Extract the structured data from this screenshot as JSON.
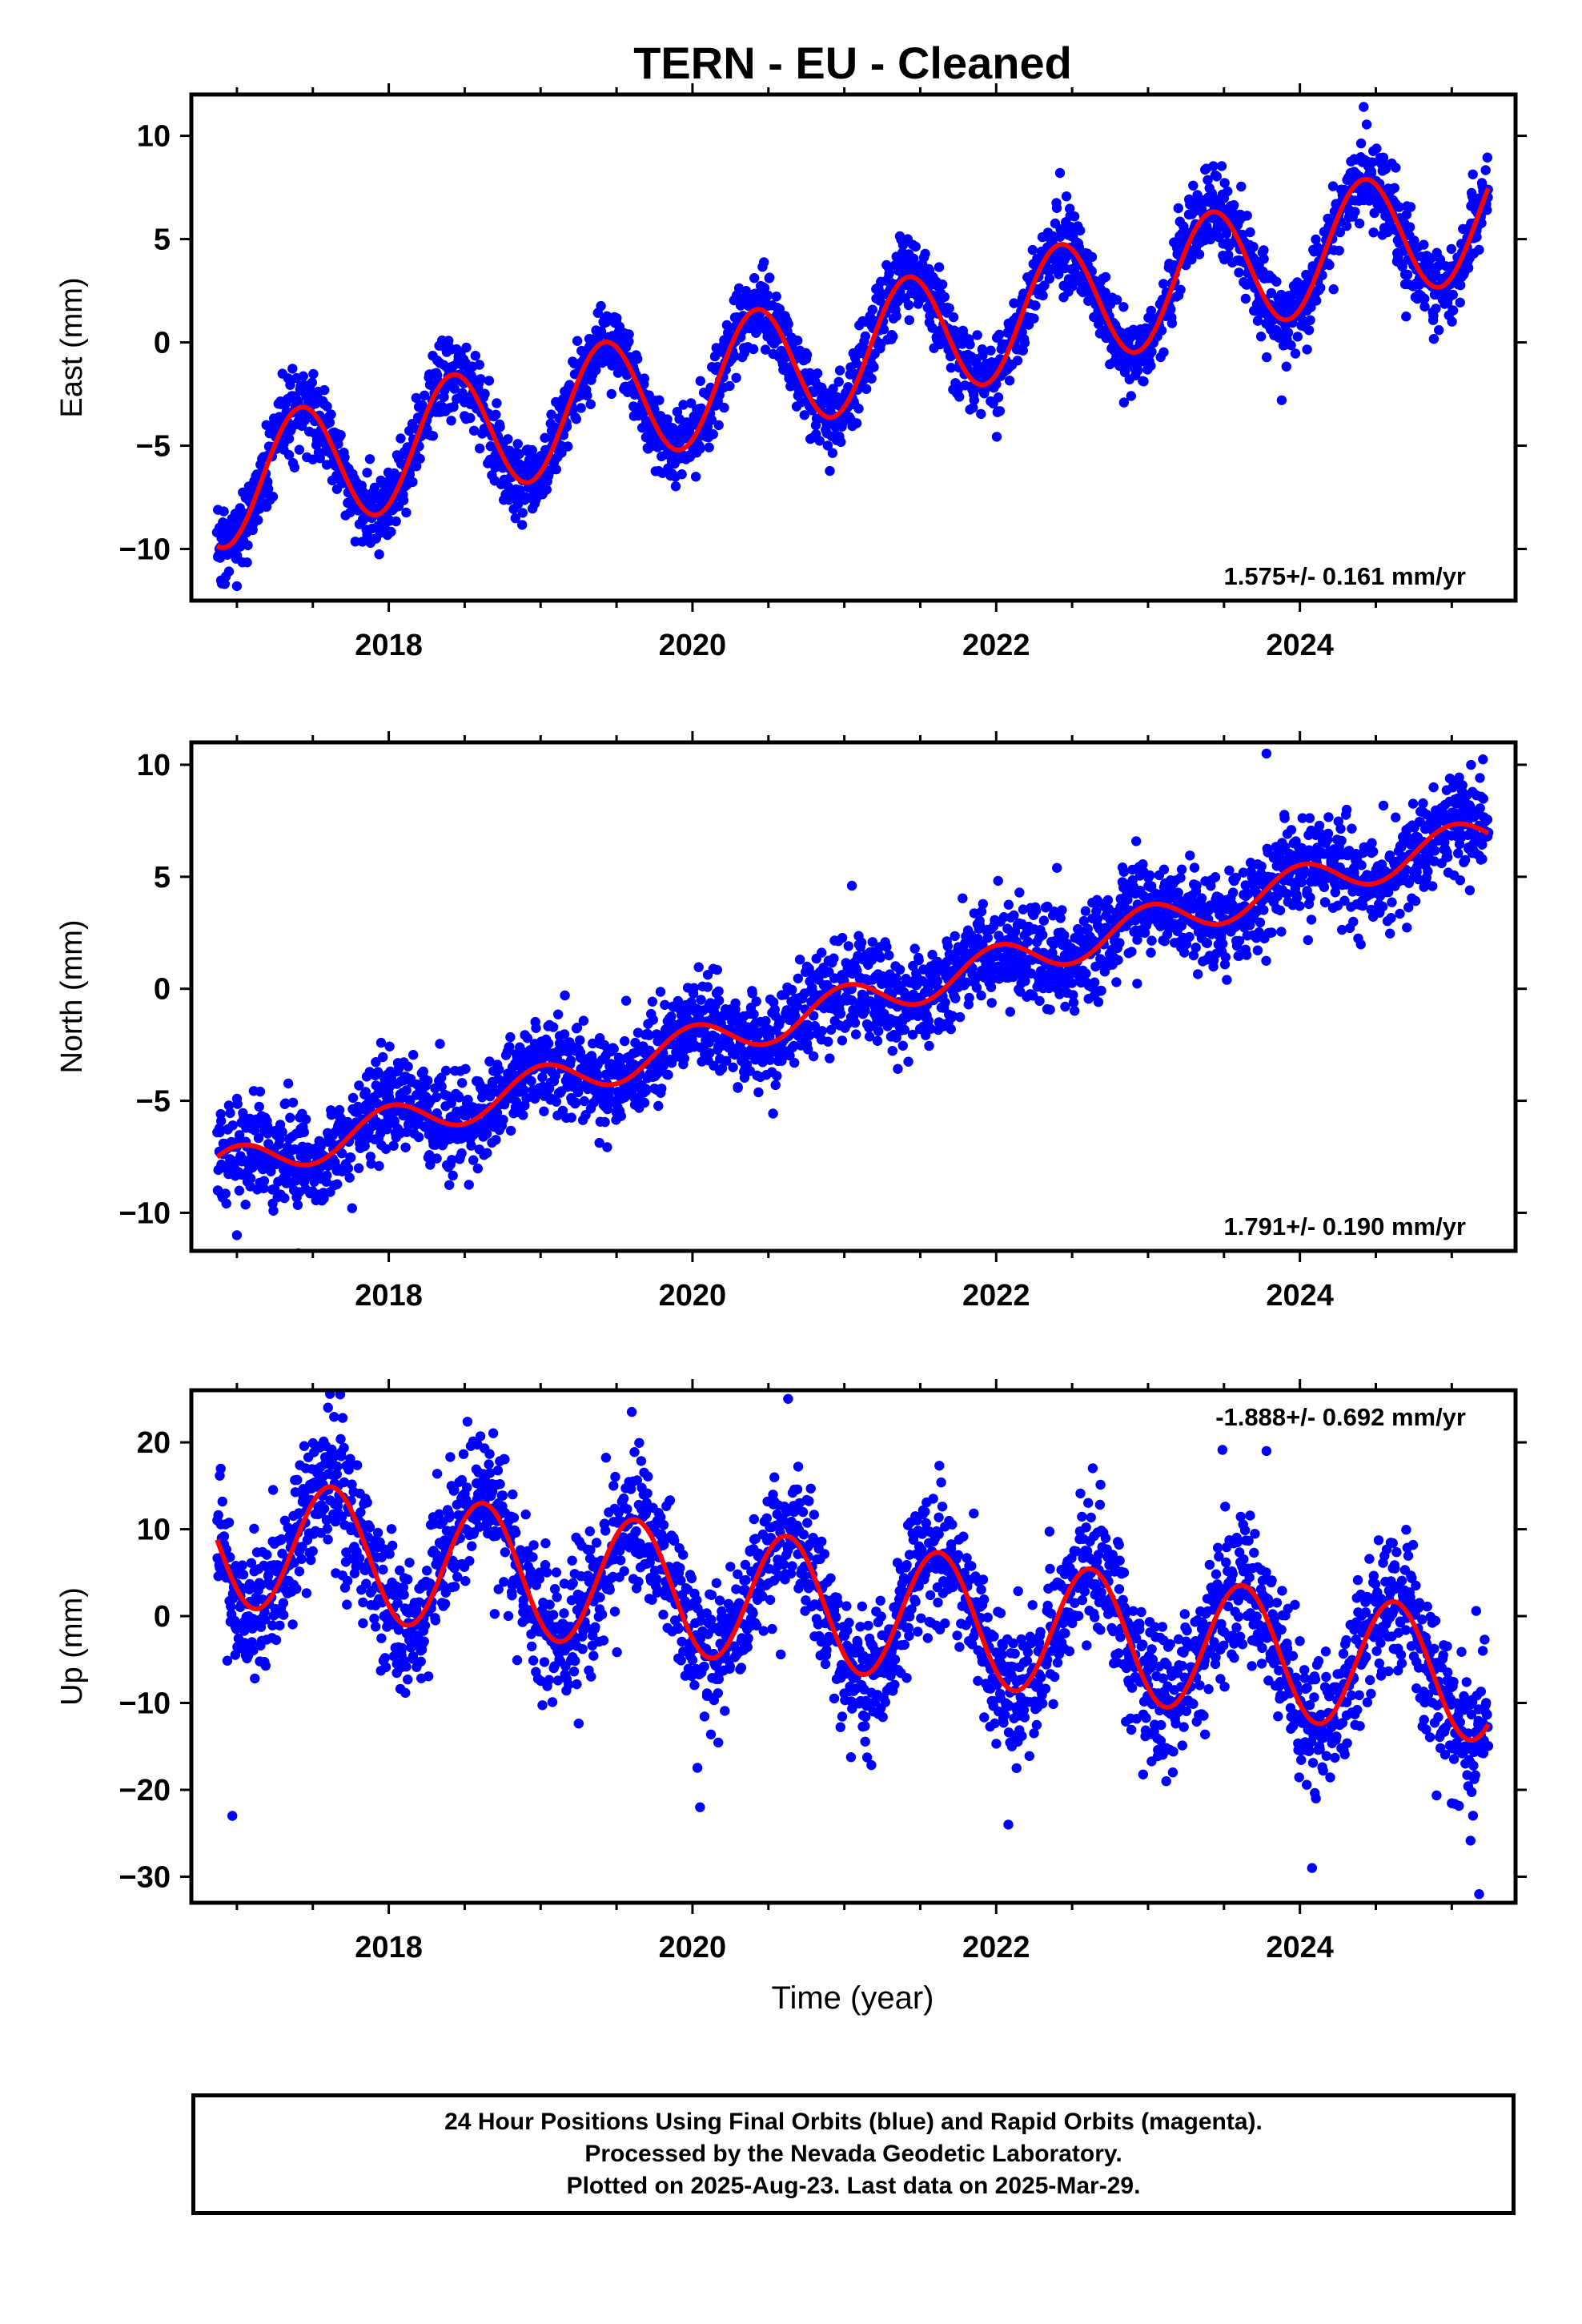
{
  "title": "TERN  - EU - Cleaned",
  "xlabel": "Time (year)",
  "footer": {
    "line1": "24 Hour Positions Using Final Orbits (blue) and Rapid Orbits (magenta).",
    "line2": "Processed by the Nevada Geodetic Laboratory.",
    "line3": "Plotted on 2025-Aug-23. Last data on 2025-Mar-29."
  },
  "colors": {
    "points": "#0000ff",
    "fit": "#ff0000",
    "frame": "#000000"
  },
  "chart_data": [
    {
      "type": "scatter",
      "ylabel": "East (mm)",
      "xlim": [
        2016.7,
        2025.42
      ],
      "ylim": [
        -12.5,
        12
      ],
      "xticks": [
        2018,
        2020,
        2022,
        2024
      ],
      "yticks": [
        -10,
        -5,
        0,
        5,
        10
      ],
      "rate_label": "1.575+/- 0.161 mm/yr",
      "rate_position": "bottom-right",
      "fit_model": {
        "t_start": 2016.87,
        "t_end": 2025.24,
        "t0": 2021.0,
        "offset": -0.5,
        "rate": 1.575,
        "amplitude": 3.0,
        "peak_year_fraction": 0.42
      },
      "fit_line": [
        [
          2016.87,
          -9.6
        ],
        [
          2017.0,
          -9.0
        ],
        [
          2017.2,
          -5.3
        ],
        [
          2017.42,
          -2.3
        ],
        [
          2017.65,
          -4.6
        ],
        [
          2017.92,
          -8.1
        ],
        [
          2018.2,
          -5.4
        ],
        [
          2018.42,
          -0.8
        ],
        [
          2018.65,
          -3.1
        ],
        [
          2018.92,
          -6.4
        ],
        [
          2019.2,
          -3.8
        ],
        [
          2019.42,
          0.7
        ],
        [
          2019.65,
          -1.5
        ],
        [
          2019.92,
          -4.9
        ],
        [
          2020.2,
          -2.2
        ],
        [
          2020.42,
          2.3
        ],
        [
          2020.65,
          0.0
        ],
        [
          2020.92,
          -3.3
        ],
        [
          2021.2,
          -0.6
        ],
        [
          2021.42,
          3.8
        ],
        [
          2021.65,
          1.6
        ],
        [
          2021.92,
          -1.7
        ],
        [
          2022.2,
          1.0
        ],
        [
          2022.42,
          5.4
        ],
        [
          2022.65,
          3.2
        ],
        [
          2022.92,
          -0.2
        ],
        [
          2023.2,
          2.5
        ],
        [
          2023.42,
          7.0
        ],
        [
          2023.65,
          4.7
        ],
        [
          2023.92,
          1.4
        ],
        [
          2024.2,
          4.1
        ],
        [
          2024.42,
          8.5
        ],
        [
          2024.65,
          6.3
        ],
        [
          2024.92,
          3.0
        ],
        [
          2025.24,
          8.4
        ]
      ],
      "scatter": {
        "t_start": 2016.87,
        "t_end": 2025.24,
        "count": 2700,
        "noise_sd": 0.95,
        "outliers": [
          [
            2017.0,
            -11.8
          ],
          [
            2023.88,
            -2.8
          ],
          [
            2024.42,
            11.4
          ],
          [
            2022.42,
            8.2
          ]
        ]
      }
    },
    {
      "type": "scatter",
      "ylabel": "North (mm)",
      "xlim": [
        2016.7,
        2025.42
      ],
      "ylim": [
        -11.7,
        11
      ],
      "xticks": [
        2018,
        2020,
        2022,
        2024
      ],
      "yticks": [
        -10,
        -5,
        0,
        5,
        10
      ],
      "rate_label": "1.791+/- 0.190 mm/yr",
      "rate_position": "bottom-right",
      "fit_model": {
        "t_start": 2016.87,
        "t_end": 2025.24,
        "t0": 2021.0,
        "offset": -0.7,
        "rate": 1.791,
        "amplitude": 0.85,
        "peak_year_fraction": 0.0
      },
      "fit_line": [
        [
          2016.87,
          -6.2
        ],
        [
          2017.0,
          -6.2
        ],
        [
          2017.25,
          -7.8
        ],
        [
          2017.5,
          -6.0
        ],
        [
          2018.0,
          -4.3
        ],
        [
          2018.25,
          -5.9
        ],
        [
          2018.5,
          -4.2
        ],
        [
          2019.0,
          -2.5
        ],
        [
          2019.25,
          -4.1
        ],
        [
          2019.5,
          -2.5
        ],
        [
          2020.0,
          -0.8
        ],
        [
          2020.25,
          -2.4
        ],
        [
          2020.5,
          -0.8
        ],
        [
          2021.0,
          1.1
        ],
        [
          2021.25,
          -0.7
        ],
        [
          2021.5,
          1.0
        ],
        [
          2022.0,
          2.6
        ],
        [
          2022.25,
          1.2
        ],
        [
          2022.5,
          2.8
        ],
        [
          2023.0,
          4.6
        ],
        [
          2023.25,
          3.0
        ],
        [
          2023.5,
          4.6
        ],
        [
          2024.0,
          6.4
        ],
        [
          2024.25,
          4.8
        ],
        [
          2024.5,
          6.4
        ],
        [
          2025.0,
          8.2
        ],
        [
          2025.24,
          6.6
        ]
      ],
      "scatter": {
        "t_start": 2016.87,
        "t_end": 2025.24,
        "count": 2700,
        "noise_sd": 1.1,
        "outliers": [
          [
            2017.0,
            -11.0
          ],
          [
            2023.78,
            10.5
          ],
          [
            2021.05,
            4.6
          ],
          [
            2022.4,
            5.4
          ]
        ]
      }
    },
    {
      "type": "scatter",
      "ylabel": "Up (mm)",
      "xlim": [
        2016.7,
        2025.42
      ],
      "ylim": [
        -33,
        26
      ],
      "xticks": [
        2018,
        2020,
        2022,
        2024
      ],
      "yticks": [
        -30,
        -20,
        -10,
        0,
        10,
        20
      ],
      "rate_label": "-1.888+/- 0.692 mm/yr",
      "rate_position": "top-right",
      "fit_model": {
        "t_start": 2016.87,
        "t_end": 2025.24,
        "t0": 2021.0,
        "offset": 1.0,
        "rate": -1.888,
        "amplitude": 7.5,
        "peak_year_fraction": 0.62
      },
      "fit_line": [
        [
          2016.87,
          5.0
        ],
        [
          2017.1,
          1.8
        ],
        [
          2017.62,
          14.2
        ],
        [
          2018.1,
          -0.3
        ],
        [
          2018.62,
          12.5
        ],
        [
          2019.1,
          -2.0
        ],
        [
          2019.62,
          10.5
        ],
        [
          2020.1,
          -3.9
        ],
        [
          2020.62,
          8.5
        ],
        [
          2021.1,
          -5.8
        ],
        [
          2021.62,
          6.7
        ],
        [
          2022.1,
          -7.6
        ],
        [
          2022.62,
          4.9
        ],
        [
          2023.1,
          -9.5
        ],
        [
          2023.62,
          3.0
        ],
        [
          2024.1,
          -11.5
        ],
        [
          2024.62,
          1.0
        ],
        [
          2025.1,
          -13.3
        ],
        [
          2025.24,
          -12.8
        ]
      ],
      "scatter": {
        "t_start": 2016.87,
        "t_end": 2025.24,
        "count": 2700,
        "noise_sd": 4.0,
        "outliers": [
          [
            2016.97,
            -23.0
          ],
          [
            2020.63,
            25.0
          ],
          [
            2023.78,
            19.0
          ],
          [
            2024.08,
            -29.0
          ],
          [
            2025.18,
            -32.0
          ],
          [
            2019.6,
            23.5
          ],
          [
            2017.6,
            24.0
          ],
          [
            2020.05,
            -22.0
          ],
          [
            2022.08,
            -24.0
          ]
        ]
      }
    }
  ]
}
